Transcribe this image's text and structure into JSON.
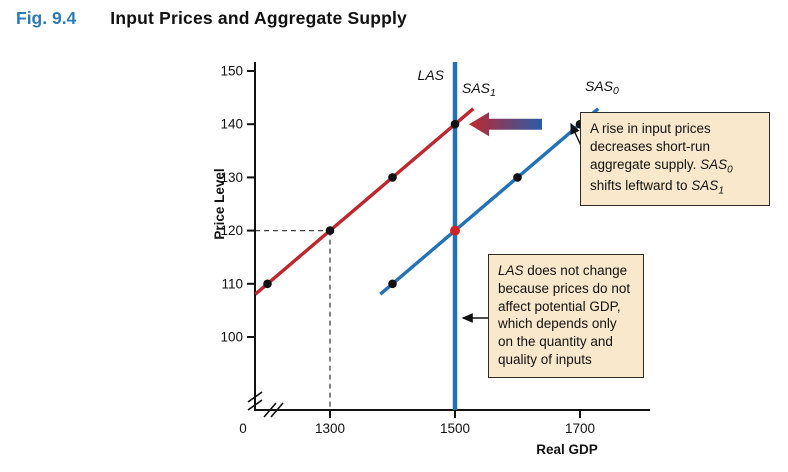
{
  "figure": {
    "label": "Fig. 9.4",
    "title": "Input Prices and Aggregate Supply"
  },
  "chart_data": {
    "type": "line",
    "title": "Input Prices and Aggregate Supply",
    "xlabel": "Real GDP",
    "ylabel": "Price Level",
    "origin_label": "0",
    "x_ticks": [
      1300,
      1500,
      1700
    ],
    "y_ticks": [
      100,
      110,
      120,
      130,
      140,
      150
    ],
    "xlim": [
      1150,
      1790
    ],
    "ylim": [
      100,
      150
    ],
    "series": [
      {
        "name": "SAS1",
        "label": "SAS",
        "label_sub": "1",
        "color": "#c0272d",
        "points": [
          [
            1200,
            110
          ],
          [
            1300,
            120
          ],
          [
            1400,
            130
          ],
          [
            1500,
            140
          ]
        ],
        "dots": [
          [
            1200,
            110
          ],
          [
            1300,
            120
          ],
          [
            1400,
            130
          ],
          [
            1500,
            140
          ]
        ],
        "dot_color": "#111111"
      },
      {
        "name": "SAS0",
        "label": "SAS",
        "label_sub": "0",
        "color": "#2272b8",
        "points": [
          [
            1400,
            110
          ],
          [
            1500,
            120
          ],
          [
            1600,
            130
          ],
          [
            1700,
            140
          ]
        ],
        "dots": [
          [
            1400,
            110
          ],
          [
            1600,
            130
          ],
          [
            1700,
            140
          ]
        ],
        "dot_color": "#111111"
      }
    ],
    "vertical_line": {
      "label": "LAS",
      "x": 1500,
      "color": "#2272b8"
    },
    "highlight_point": {
      "x": 1500,
      "y": 120,
      "color": "#d02327"
    },
    "dashed_guides": {
      "price": 120,
      "gdp": 1300
    },
    "shift_arrow": {
      "at_price": 140,
      "direction": "left",
      "color_left": "#c0272d",
      "color_right": "#2a5ca8"
    }
  },
  "callouts": [
    {
      "name": "sas-shift-note",
      "segments": [
        {
          "t": "A rise in input prices decreases short-run aggregate supply. "
        },
        {
          "t": "SAS",
          "i": true
        },
        {
          "t": "0",
          "sub": true
        },
        {
          "t": " shifts leftward to "
        },
        {
          "t": "SAS",
          "i": true
        },
        {
          "t": "1",
          "sub": true
        }
      ]
    },
    {
      "name": "las-note",
      "segments": [
        {
          "t": "LAS",
          "i": true
        },
        {
          "t": " does not change because prices do not affect potential GDP, which depends only on the quantity and quality of inputs"
        }
      ]
    }
  ],
  "colors": {
    "figure_label": "#2b7bb9",
    "callout_bg": "#f9e8cb",
    "callout_border": "#2b2b2b",
    "axis": "#111111",
    "guide": "#444444"
  }
}
